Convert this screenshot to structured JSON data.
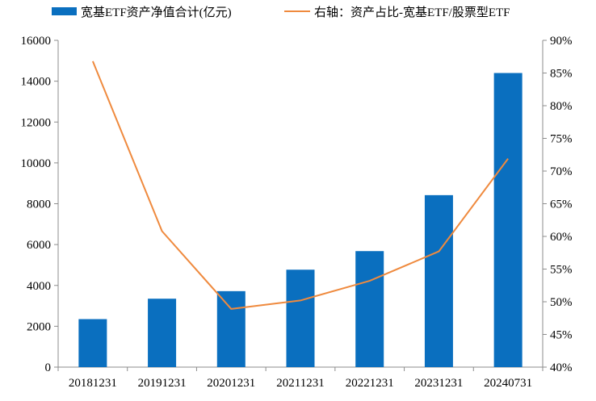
{
  "chart_data": {
    "type": "bar",
    "categories": [
      "20181231",
      "20191231",
      "20201231",
      "20211231",
      "20221231",
      "20231231",
      "20240731"
    ],
    "series": [
      {
        "name": "宽基ETF资产净值合计(亿元)",
        "type": "bar",
        "axis": "left",
        "color": "#0a6fbf",
        "values": [
          2350,
          3350,
          3720,
          4770,
          5680,
          8420,
          14400
        ]
      },
      {
        "name": "右轴：资产占比-宽基ETF/股票型ETF",
        "type": "line",
        "axis": "right",
        "color": "#ef8a3e",
        "values": [
          86.8,
          60.8,
          48.9,
          50.2,
          53.2,
          57.7,
          71.9
        ]
      }
    ],
    "y_left": {
      "ylim": [
        0,
        16000
      ],
      "ticks": [
        "0",
        "2000",
        "4000",
        "6000",
        "8000",
        "10000",
        "12000",
        "14000",
        "16000"
      ]
    },
    "y_right": {
      "ylim": [
        40,
        90
      ],
      "ticks": [
        "40%",
        "45%",
        "50%",
        "55%",
        "60%",
        "65%",
        "70%",
        "75%",
        "80%",
        "85%",
        "90%"
      ]
    },
    "grid": false,
    "legend_position": "top"
  }
}
